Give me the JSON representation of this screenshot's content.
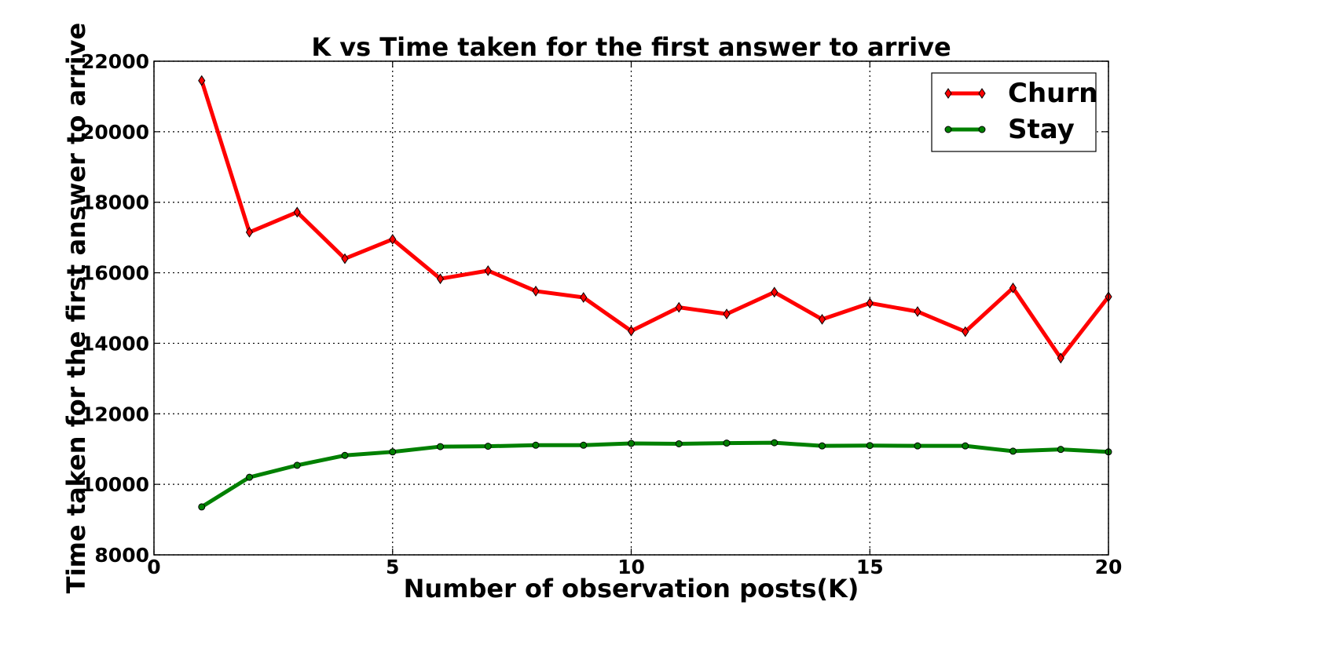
{
  "chart_data": {
    "type": "line",
    "title": "K vs Time taken for the first answer to arrive",
    "xlabel": "Number of observation posts(K)",
    "ylabel": "Time taken for the first answer to arrive",
    "xlim": [
      0,
      20
    ],
    "ylim": [
      8000,
      22000
    ],
    "xticks": [
      "0",
      "5",
      "10",
      "15",
      "20"
    ],
    "yticks": [
      "8000",
      "10000",
      "12000",
      "14000",
      "16000",
      "18000",
      "20000",
      "22000"
    ],
    "grid": true,
    "legend_position": "top-right",
    "x": [
      1,
      2,
      3,
      4,
      5,
      6,
      7,
      8,
      9,
      10,
      11,
      12,
      13,
      14,
      15,
      16,
      17,
      18,
      19,
      20
    ],
    "series": [
      {
        "name": "Churn",
        "color": "#ff0000",
        "marker": "diamond",
        "values": [
          21450,
          17150,
          17720,
          16400,
          16950,
          15830,
          16060,
          15480,
          15300,
          14350,
          15020,
          14830,
          15450,
          14680,
          15140,
          14900,
          14330,
          15570,
          13580,
          15320
        ]
      },
      {
        "name": "Stay",
        "color": "#008000",
        "marker": "circle",
        "values": [
          9360,
          10200,
          10540,
          10820,
          10920,
          11070,
          11080,
          11110,
          11110,
          11160,
          11150,
          11170,
          11180,
          11090,
          11100,
          11090,
          11090,
          10940,
          10990,
          10920
        ]
      }
    ]
  }
}
